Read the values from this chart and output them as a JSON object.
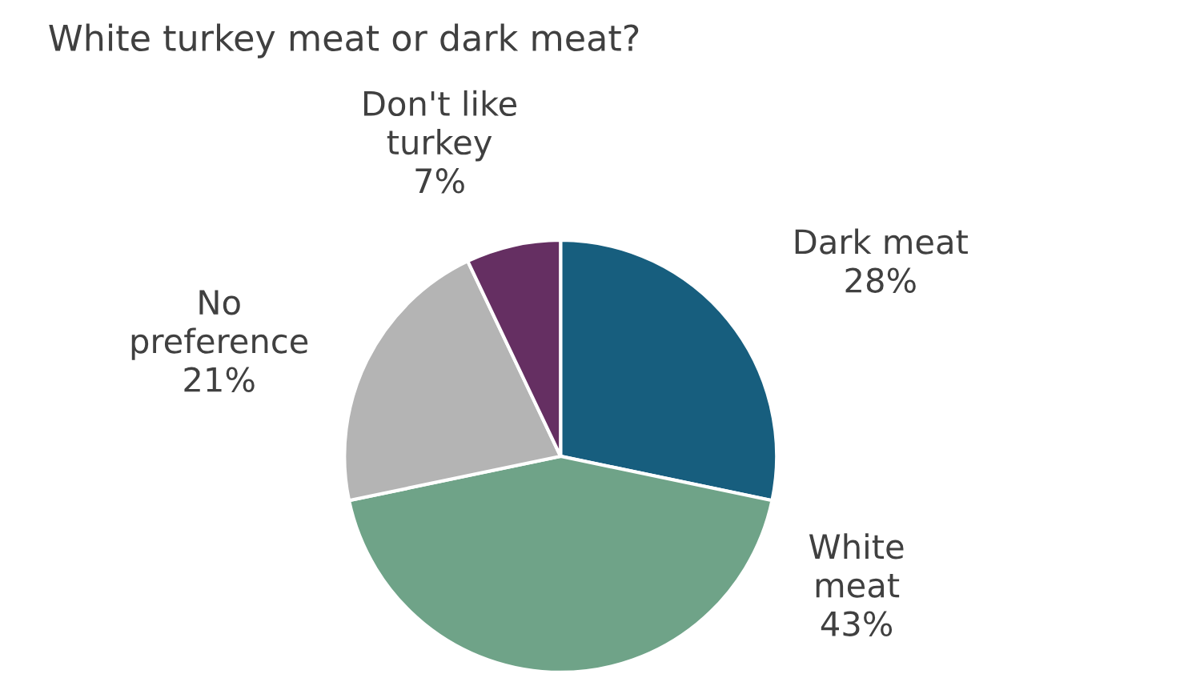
{
  "chart_data": {
    "type": "pie",
    "title": "White turkey meat or dark meat?",
    "categories": [
      "Dark meat",
      "White\nmeat",
      "No\npreference",
      "Don't like\nturkey"
    ],
    "values": [
      28,
      43,
      21,
      7
    ],
    "colors": [
      "#175e7e",
      "#6fa388",
      "#b4b4b4",
      "#652f62"
    ],
    "value_labels": [
      "28%",
      "43%",
      "21%",
      "7%"
    ]
  }
}
